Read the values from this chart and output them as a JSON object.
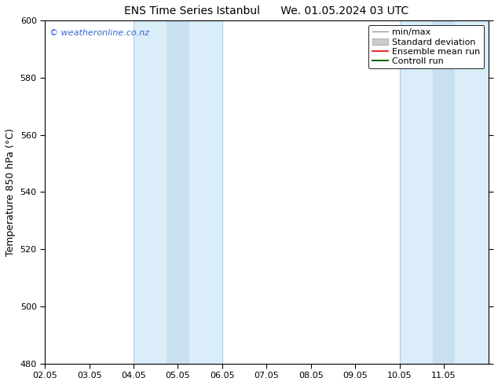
{
  "title": "ENS Time Series Istanbul      We. 01.05.2024 03 UTC",
  "ylabel": "Temperature 850 hPa (°C)",
  "ylim": [
    480,
    600
  ],
  "yticks": [
    480,
    500,
    520,
    540,
    560,
    580,
    600
  ],
  "xlim": [
    0,
    10
  ],
  "xtick_labels": [
    "02.05",
    "03.05",
    "04.05",
    "05.05",
    "06.05",
    "07.05",
    "08.05",
    "09.05",
    "10.05",
    "11.05"
  ],
  "xtick_positions": [
    0,
    1,
    2,
    3,
    4,
    5,
    6,
    7,
    8,
    9
  ],
  "blue_band1": [
    2,
    4
  ],
  "blue_band2": [
    8,
    10
  ],
  "blue_band_divider1": 3,
  "blue_band_divider2": 9,
  "blue_band_color": "#daedf8",
  "blue_band_inner_color": "#c8e0f0",
  "blue_band_edge_color": "#b0cfe8",
  "watermark": "© weatheronline.co.nz",
  "watermark_color": "#3366cc",
  "legend_labels": [
    "min/max",
    "Standard deviation",
    "Ensemble mean run",
    "Controll run"
  ],
  "legend_line_color": "#999999",
  "legend_patch_color": "#cccccc",
  "legend_red": "#dd0000",
  "legend_green": "#006600",
  "background_color": "#ffffff",
  "title_fontsize": 10,
  "ylabel_fontsize": 9,
  "tick_fontsize": 8,
  "legend_fontsize": 8
}
